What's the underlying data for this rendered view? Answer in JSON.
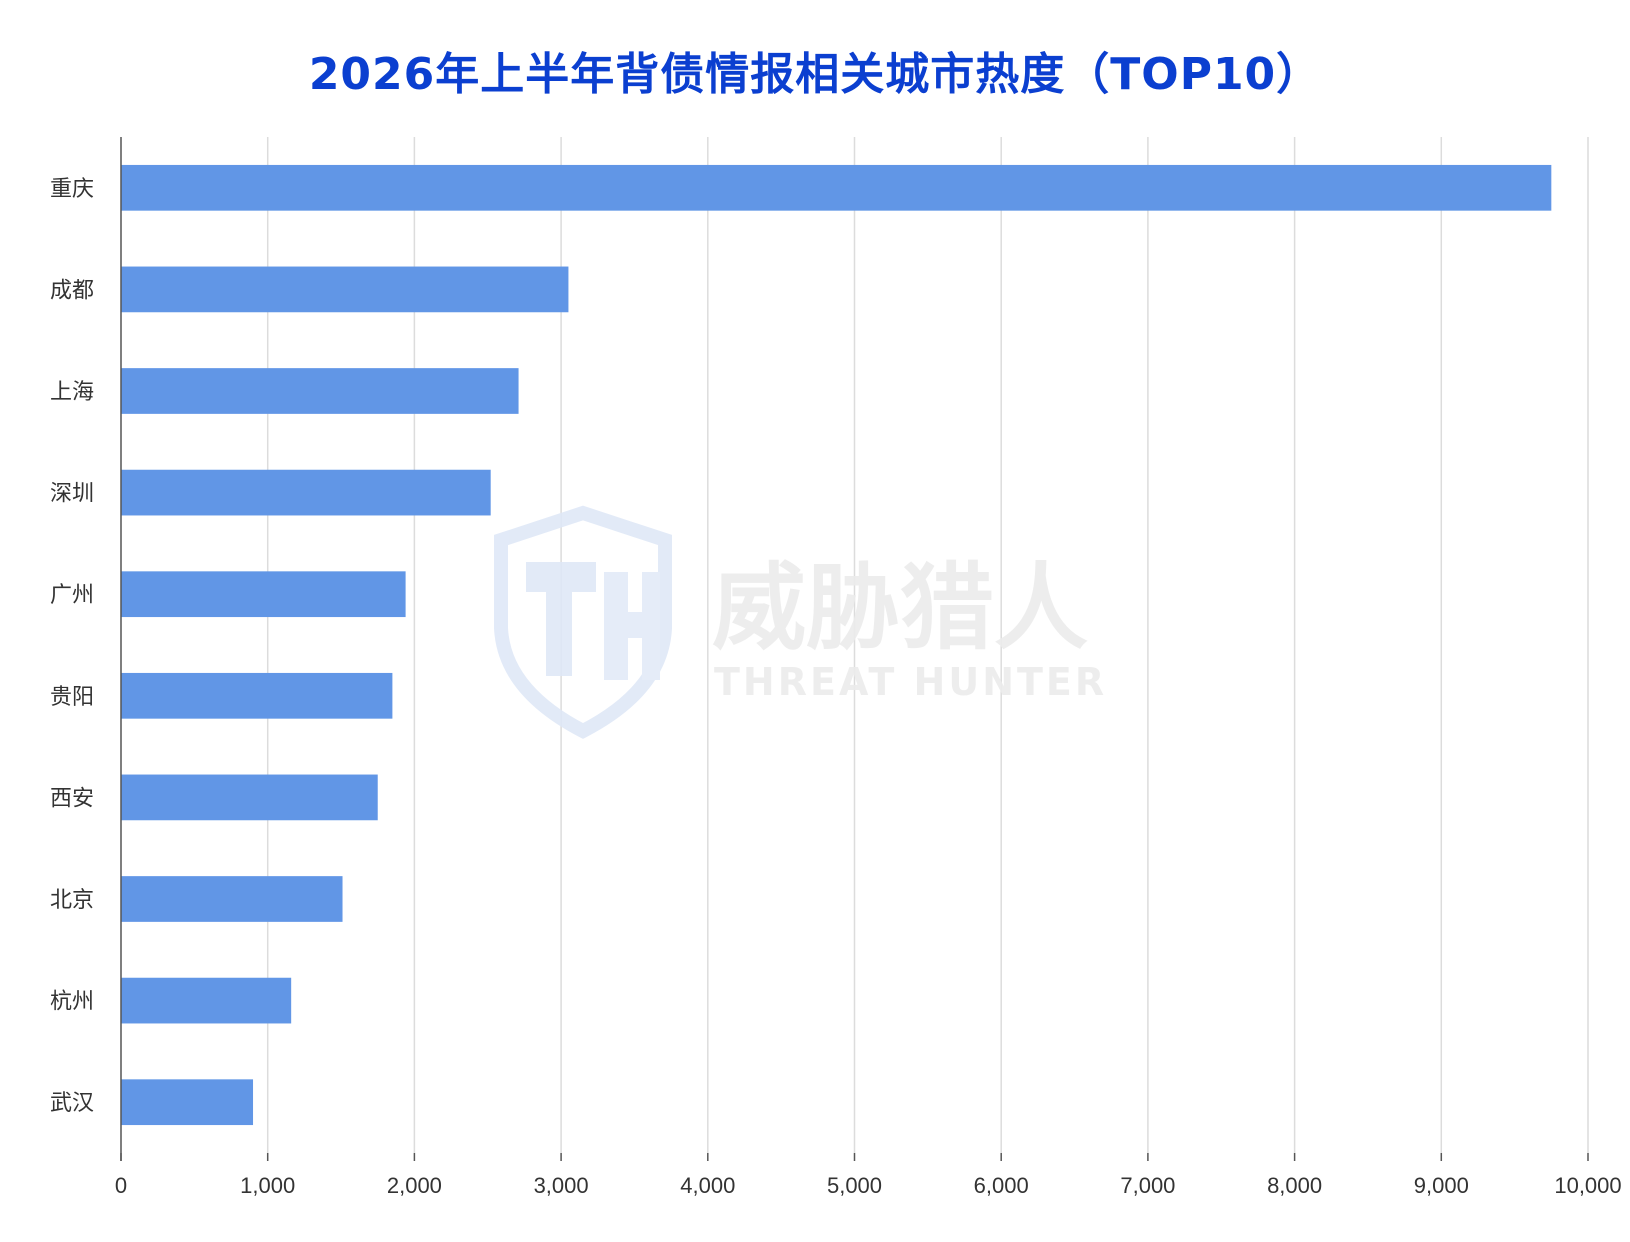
{
  "chart_data": {
    "type": "bar",
    "orientation": "horizontal",
    "title": "2026年上半年背债情报相关城市热度（TOP10）",
    "xlabel": "",
    "ylabel": "",
    "categories": [
      "重庆",
      "成都",
      "上海",
      "深圳",
      "广州",
      "贵阳",
      "西安",
      "北京",
      "杭州",
      "武汉"
    ],
    "values": [
      9750,
      3050,
      2710,
      2520,
      1940,
      1850,
      1750,
      1510,
      1160,
      900
    ],
    "xlim": [
      0,
      10000
    ],
    "xticks": [
      0,
      1000,
      2000,
      3000,
      4000,
      5000,
      6000,
      7000,
      8000,
      9000,
      10000
    ],
    "xtick_labels": [
      "0",
      "1,000",
      "2,000",
      "3,000",
      "4,000",
      "5,000",
      "6,000",
      "7,000",
      "8,000",
      "9,000",
      "10,000"
    ],
    "grid": "vertical",
    "legend": "none",
    "bar_color": "#6196e6",
    "title_color": "#0b3fd0"
  },
  "watermark": {
    "name": "威胁猎人",
    "subtitle": "THREAT HUNTER",
    "icon": "shield-th-logo-icon"
  }
}
